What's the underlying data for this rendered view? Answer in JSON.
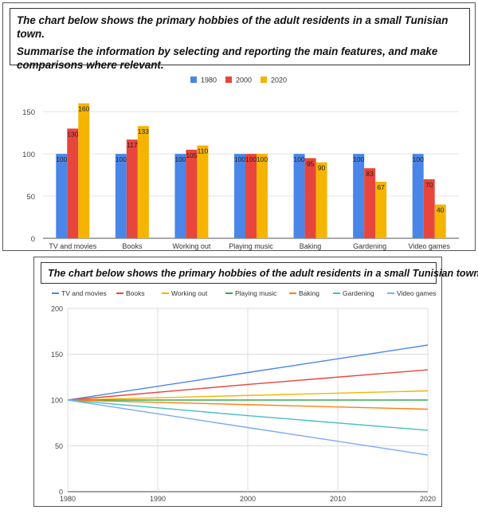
{
  "prompt_top": {
    "line1": "The chart below shows the primary hobbies of the adult residents in a small Tunisian town.",
    "line2": "Summarise the information by selecting and reporting the main features, and make comparisons where relevant."
  },
  "prompt_bottom": {
    "line1": "The chart below shows the primary hobbies of the adult residents in a small Tunisian town."
  },
  "colors": {
    "1980": "#4a86e8",
    "2000": "#e8453c",
    "2020": "#f4b400",
    "TV and movies": "#4a86e8",
    "Books": "#e8453c",
    "Working out": "#f4b400",
    "Playing music": "#34a853",
    "Baking": "#ff7f0e",
    "Gardening": "#46bdc6",
    "Video games": "#7baaf7"
  },
  "chart_data": [
    {
      "type": "bar",
      "categories": [
        "TV and movies",
        "Books",
        "Working out",
        "Playing music",
        "Baking",
        "Gardening",
        "Video games"
      ],
      "series": [
        {
          "name": "1980",
          "values": [
            100,
            100,
            100,
            100,
            100,
            100,
            100
          ]
        },
        {
          "name": "2000",
          "values": [
            130,
            117,
            105,
            100,
            95,
            83,
            70
          ]
        },
        {
          "name": "2020",
          "values": [
            160,
            133,
            110,
            100,
            90,
            67,
            40
          ]
        }
      ],
      "yticks": [
        0,
        50,
        100,
        150
      ],
      "ylim": [
        0,
        170
      ],
      "grid": true,
      "legend": "top-center",
      "data_labels": true
    },
    {
      "type": "line",
      "x": [
        1980,
        2000,
        2020
      ],
      "series": [
        {
          "name": "TV and movies",
          "values": [
            100,
            130,
            160
          ]
        },
        {
          "name": "Books",
          "values": [
            100,
            117,
            133
          ]
        },
        {
          "name": "Working out",
          "values": [
            100,
            105,
            110
          ]
        },
        {
          "name": "Playing music",
          "values": [
            100,
            100,
            100
          ]
        },
        {
          "name": "Baking",
          "values": [
            100,
            95,
            90
          ]
        },
        {
          "name": "Gardening",
          "values": [
            100,
            83,
            67
          ]
        },
        {
          "name": "Video games",
          "values": [
            100,
            70,
            40
          ]
        }
      ],
      "xticks": [
        1980,
        1990,
        2000,
        2010,
        2020
      ],
      "yticks": [
        0,
        50,
        100,
        150,
        200
      ],
      "xlim": [
        1980,
        2020
      ],
      "ylim": [
        0,
        200
      ],
      "grid": true,
      "legend": "top"
    }
  ]
}
